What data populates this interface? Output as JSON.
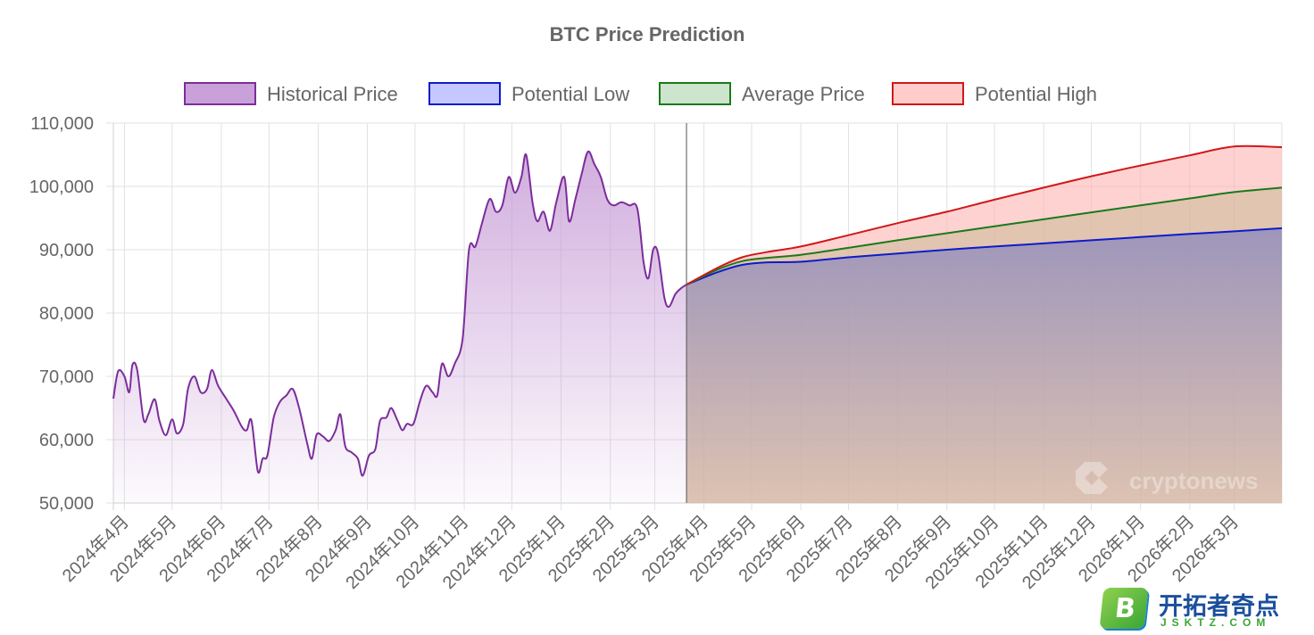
{
  "chart_data": {
    "type": "area",
    "title": "BTC Price Prediction",
    "xlabel": "",
    "ylabel": "",
    "ylim": [
      50000,
      110000
    ],
    "yticks": [
      50000,
      60000,
      70000,
      80000,
      90000,
      100000,
      110000
    ],
    "ytick_labels": [
      "50,000",
      "60,000",
      "70,000",
      "80,000",
      "90,000",
      "100,000",
      "110,000"
    ],
    "x_axis_start": "2024-03-25",
    "x_axis_end": "2026-03-31",
    "grid": true,
    "legend_position": "top",
    "x_tick_labels": [
      {
        "date": "2024-04-01",
        "label": "2024年4月"
      },
      {
        "date": "2024-05-01",
        "label": "2024年5月"
      },
      {
        "date": "2024-06-01",
        "label": "2024年6月"
      },
      {
        "date": "2024-07-01",
        "label": "2024年7月"
      },
      {
        "date": "2024-08-01",
        "label": "2024年8月"
      },
      {
        "date": "2024-09-01",
        "label": "2024年9月"
      },
      {
        "date": "2024-10-01",
        "label": "2024年10月"
      },
      {
        "date": "2024-11-01",
        "label": "2024年11月"
      },
      {
        "date": "2024-12-01",
        "label": "2024年12月"
      },
      {
        "date": "2025-01-01",
        "label": "2025年1月"
      },
      {
        "date": "2025-02-01",
        "label": "2025年2月"
      },
      {
        "date": "2025-03-01",
        "label": "2025年3月"
      },
      {
        "date": "2025-04-01",
        "label": "2025年4月"
      },
      {
        "date": "2025-05-01",
        "label": "2025年5月"
      },
      {
        "date": "2025-06-01",
        "label": "2025年6月"
      },
      {
        "date": "2025-07-01",
        "label": "2025年7月"
      },
      {
        "date": "2025-08-01",
        "label": "2025年8月"
      },
      {
        "date": "2025-09-01",
        "label": "2025年9月"
      },
      {
        "date": "2025-10-01",
        "label": "2025年10月"
      },
      {
        "date": "2025-11-01",
        "label": "2025年11月"
      },
      {
        "date": "2025-12-01",
        "label": "2025年12月"
      },
      {
        "date": "2026-01-01",
        "label": "2026年1月"
      },
      {
        "date": "2026-02-01",
        "label": "2026年2月"
      },
      {
        "date": "2026-03-01",
        "label": "2026年3月"
      }
    ],
    "series": [
      {
        "name": "Historical Price",
        "color": "#7b2d9b",
        "fill": "#c9a0d8",
        "points": [
          [
            "2024-03-25",
            66500
          ],
          [
            "2024-03-28",
            70800
          ],
          [
            "2024-04-01",
            70000
          ],
          [
            "2024-04-04",
            67500
          ],
          [
            "2024-04-06",
            71800
          ],
          [
            "2024-04-09",
            71000
          ],
          [
            "2024-04-13",
            63200
          ],
          [
            "2024-04-16",
            64000
          ],
          [
            "2024-04-20",
            66400
          ],
          [
            "2024-04-23",
            63000
          ],
          [
            "2024-04-27",
            60700
          ],
          [
            "2024-05-01",
            63200
          ],
          [
            "2024-05-04",
            61000
          ],
          [
            "2024-05-08",
            62500
          ],
          [
            "2024-05-11",
            68000
          ],
          [
            "2024-05-15",
            70000
          ],
          [
            "2024-05-19",
            67500
          ],
          [
            "2024-05-23",
            68000
          ],
          [
            "2024-05-26",
            71000
          ],
          [
            "2024-05-30",
            68500
          ],
          [
            "2024-06-04",
            66500
          ],
          [
            "2024-06-09",
            64500
          ],
          [
            "2024-06-14",
            62000
          ],
          [
            "2024-06-17",
            61500
          ],
          [
            "2024-06-20",
            63000
          ],
          [
            "2024-06-24",
            55000
          ],
          [
            "2024-06-27",
            57000
          ],
          [
            "2024-06-30",
            57500
          ],
          [
            "2024-07-04",
            63500
          ],
          [
            "2024-07-08",
            66000
          ],
          [
            "2024-07-12",
            67000
          ],
          [
            "2024-07-16",
            68000
          ],
          [
            "2024-07-20",
            65000
          ],
          [
            "2024-07-25",
            59500
          ],
          [
            "2024-07-28",
            57000
          ],
          [
            "2024-07-31",
            60800
          ],
          [
            "2024-08-04",
            60500
          ],
          [
            "2024-08-08",
            59800
          ],
          [
            "2024-08-12",
            61500
          ],
          [
            "2024-08-15",
            64000
          ],
          [
            "2024-08-18",
            59000
          ],
          [
            "2024-08-22",
            58000
          ],
          [
            "2024-08-26",
            57000
          ],
          [
            "2024-08-29",
            54300
          ],
          [
            "2024-09-02",
            57500
          ],
          [
            "2024-09-06",
            58500
          ],
          [
            "2024-09-09",
            63000
          ],
          [
            "2024-09-13",
            63500
          ],
          [
            "2024-09-16",
            65000
          ],
          [
            "2024-09-20",
            63000
          ],
          [
            "2024-09-23",
            61500
          ],
          [
            "2024-09-26",
            62500
          ],
          [
            "2024-09-30",
            62500
          ],
          [
            "2024-10-04",
            66000
          ],
          [
            "2024-10-08",
            68500
          ],
          [
            "2024-10-12",
            67500
          ],
          [
            "2024-10-15",
            67000
          ],
          [
            "2024-10-18",
            72000
          ],
          [
            "2024-10-22",
            70000
          ],
          [
            "2024-10-26",
            72000
          ],
          [
            "2024-10-31",
            76000
          ],
          [
            "2024-11-04",
            90000
          ],
          [
            "2024-11-08",
            90500
          ],
          [
            "2024-11-12",
            94000
          ],
          [
            "2024-11-17",
            98000
          ],
          [
            "2024-11-21",
            96000
          ],
          [
            "2024-11-25",
            97000
          ],
          [
            "2024-11-29",
            101500
          ],
          [
            "2024-12-03",
            99000
          ],
          [
            "2024-12-07",
            101500
          ],
          [
            "2024-12-10",
            105000
          ],
          [
            "2024-12-14",
            97500
          ],
          [
            "2024-12-17",
            94500
          ],
          [
            "2024-12-21",
            96000
          ],
          [
            "2024-12-25",
            93000
          ],
          [
            "2024-12-29",
            97500
          ],
          [
            "2025-01-03",
            101500
          ],
          [
            "2025-01-06",
            94500
          ],
          [
            "2025-01-10",
            98000
          ],
          [
            "2025-01-14",
            102000
          ],
          [
            "2025-01-18",
            105500
          ],
          [
            "2025-01-22",
            103500
          ],
          [
            "2025-01-26",
            101500
          ],
          [
            "2025-01-30",
            98000
          ],
          [
            "2025-02-03",
            97000
          ],
          [
            "2025-02-08",
            97500
          ],
          [
            "2025-02-13",
            97000
          ],
          [
            "2025-02-18",
            96500
          ],
          [
            "2025-02-22",
            88000
          ],
          [
            "2025-02-25",
            85500
          ],
          [
            "2025-02-28",
            90000
          ],
          [
            "2025-03-03",
            89500
          ],
          [
            "2025-03-07",
            82500
          ],
          [
            "2025-03-10",
            81000
          ],
          [
            "2025-03-14",
            83000
          ],
          [
            "2025-03-18",
            84000
          ],
          [
            "2025-03-21",
            84500
          ]
        ]
      },
      {
        "name": "Potential Low",
        "color": "#0f1bc9",
        "fill": "#c5c8ff",
        "points": [
          [
            "2025-03-21",
            84500
          ],
          [
            "2025-04-10",
            86500
          ],
          [
            "2025-04-25",
            87600
          ],
          [
            "2025-05-10",
            88000
          ],
          [
            "2025-06-01",
            88100
          ],
          [
            "2025-07-01",
            88800
          ],
          [
            "2025-08-01",
            89400
          ],
          [
            "2025-09-01",
            90000
          ],
          [
            "2025-10-01",
            90500
          ],
          [
            "2025-11-01",
            91000
          ],
          [
            "2025-12-01",
            91500
          ],
          [
            "2026-01-01",
            92000
          ],
          [
            "2026-02-01",
            92500
          ],
          [
            "2026-03-01",
            92900
          ],
          [
            "2026-03-31",
            93400
          ]
        ]
      },
      {
        "name": "Average Price",
        "color": "#1a7a1a",
        "fill": "#cce5cc",
        "points": [
          [
            "2025-03-21",
            84500
          ],
          [
            "2025-04-10",
            86900
          ],
          [
            "2025-04-25",
            88200
          ],
          [
            "2025-05-10",
            88700
          ],
          [
            "2025-06-01",
            89200
          ],
          [
            "2025-07-01",
            90300
          ],
          [
            "2025-08-01",
            91500
          ],
          [
            "2025-09-01",
            92600
          ],
          [
            "2025-10-01",
            93700
          ],
          [
            "2025-11-01",
            94800
          ],
          [
            "2025-12-01",
            95900
          ],
          [
            "2026-01-01",
            97000
          ],
          [
            "2026-02-01",
            98100
          ],
          [
            "2026-03-01",
            99100
          ],
          [
            "2026-03-31",
            99800
          ]
        ]
      },
      {
        "name": "Potential High",
        "color": "#d01818",
        "fill": "#ffcccc",
        "points": [
          [
            "2025-03-21",
            84500
          ],
          [
            "2025-04-10",
            87200
          ],
          [
            "2025-04-25",
            88800
          ],
          [
            "2025-05-10",
            89600
          ],
          [
            "2025-06-01",
            90500
          ],
          [
            "2025-07-01",
            92300
          ],
          [
            "2025-08-01",
            94200
          ],
          [
            "2025-09-01",
            96000
          ],
          [
            "2025-10-01",
            97900
          ],
          [
            "2025-11-01",
            99800
          ],
          [
            "2025-12-01",
            101600
          ],
          [
            "2026-01-01",
            103300
          ],
          [
            "2026-02-01",
            104900
          ],
          [
            "2026-03-01",
            106300
          ],
          [
            "2026-03-31",
            106200
          ]
        ]
      }
    ]
  },
  "prediction_start": "2025-03-21",
  "watermark": "cryptonews",
  "logo": {
    "badge_letter": "B",
    "name": "开拓者奇点",
    "sub": "JSKTZ.COM"
  }
}
